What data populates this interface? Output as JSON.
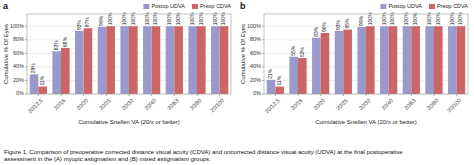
{
  "chart_data": [
    {
      "type": "bar",
      "title": "a",
      "x_label": "Cumulative Snellen VA (20/x or better)",
      "y_label": "Cumulative % Of Eyes",
      "categories": [
        "20/12.5",
        "20/16",
        "20/20",
        "20/25",
        "20/32",
        "20/40",
        "20/63",
        "20/80",
        "20/100"
      ],
      "series": [
        {
          "name": "Postop UDVA",
          "color": "#9999CC",
          "values": [
            29,
            63,
            93,
            99,
            100,
            100,
            100,
            100,
            100
          ],
          "value_labels": [
            "29%",
            "63%",
            "93%",
            "99%",
            "100%",
            "100%",
            "100%",
            "100%",
            "100%"
          ]
        },
        {
          "name": "Preop CDVA",
          "color": "#CC6666",
          "values": [
            11,
            68,
            97,
            100,
            100,
            100,
            100,
            100,
            100
          ],
          "value_labels": [
            "11%",
            "68%",
            "97%",
            "100%",
            "100%",
            "100%",
            "100%",
            "100%",
            "100%"
          ]
        }
      ],
      "ylim": [
        0,
        118
      ],
      "yticks": [
        {
          "value": 0,
          "label": "0%"
        },
        {
          "value": 20,
          "label": "20%"
        },
        {
          "value": 40,
          "label": "40%"
        },
        {
          "value": 60,
          "label": "60%"
        },
        {
          "value": 80,
          "label": "80%"
        },
        {
          "value": 100,
          "label": "100%"
        }
      ],
      "grid": true,
      "legend": "top",
      "data_labels": true
    },
    {
      "type": "bar",
      "title": "b",
      "x_label": "Cumulative Snellen VA (20/x or better)",
      "y_label": "Cumulative % Of Eyes",
      "categories": [
        "20/12.5",
        "20/16",
        "20/20",
        "20/25",
        "20/32",
        "20/40",
        "20/63",
        "20/80",
        "20/100"
      ],
      "series": [
        {
          "name": "Postop UDVA",
          "color": "#9999CC",
          "values": [
            21,
            55,
            83,
            93,
            99,
            100,
            100,
            100,
            100
          ],
          "value_labels": [
            "21%",
            "55%",
            "83%",
            "93%",
            "99%",
            "100%",
            "100%",
            "100%",
            "100%"
          ]
        },
        {
          "name": "Preop CDVA",
          "color": "#CC6666",
          "values": [
            11,
            53,
            90,
            95,
            100,
            100,
            100,
            100,
            100
          ],
          "value_labels": [
            "11%",
            "53%",
            "90%",
            "95%",
            "100%",
            "100%",
            "100%",
            "100%",
            "100%"
          ]
        }
      ],
      "ylim": [
        0,
        118
      ],
      "yticks": [
        {
          "value": 0,
          "label": "0%"
        },
        {
          "value": 20,
          "label": "20%"
        },
        {
          "value": 40,
          "label": "40%"
        },
        {
          "value": 60,
          "label": "60%"
        },
        {
          "value": 80,
          "label": "80%"
        },
        {
          "value": 100,
          "label": "100%"
        }
      ],
      "grid": true,
      "legend": "top",
      "data_labels": true
    }
  ],
  "caption": "Figure 1. Comparison of preoperative corrected distance visual acuity (CDVA) and uncorrected distance visual acuity (UDVA) at the final postoperative\nassessment in the (A) myopic astigmatism and (B) mixed astigmatism groups."
}
